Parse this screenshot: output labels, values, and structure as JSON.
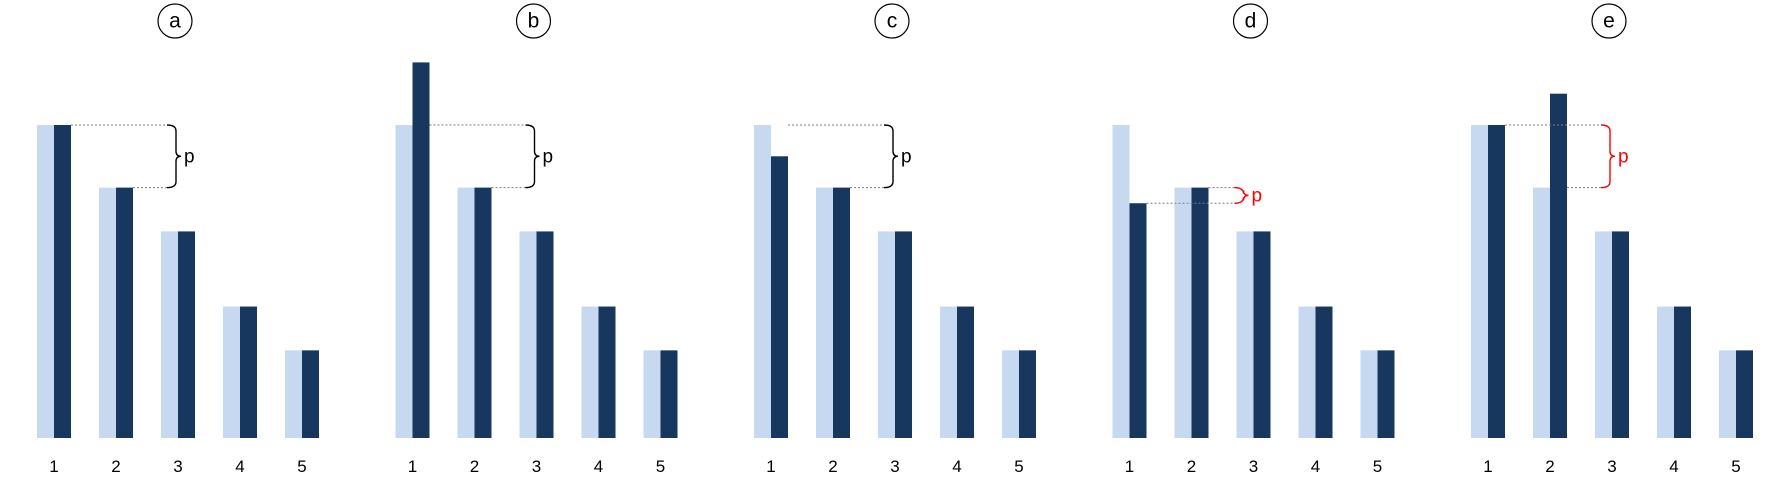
{
  "colors": {
    "light_bar": "#c6d9f0",
    "dark_bar": "#17375e",
    "text": "#000000",
    "highlight": "#ff0000",
    "guide_line": "#7f7f7f"
  },
  "chart_data": [
    {
      "type": "bar",
      "panel_label": "a",
      "categories": [
        "1",
        "2",
        "3",
        "4",
        "5"
      ],
      "series": [
        {
          "values": [
            100,
            80,
            66,
            42,
            28
          ]
        },
        {
          "values": [
            100,
            80,
            66,
            42,
            28
          ]
        }
      ],
      "annotation": {
        "label": "p",
        "from": 100,
        "to": 80,
        "highlight": false
      },
      "ylim": [
        0,
        120
      ]
    },
    {
      "type": "bar",
      "panel_label": "b",
      "categories": [
        "1",
        "2",
        "3",
        "4",
        "5"
      ],
      "series": [
        {
          "values": [
            100,
            80,
            66,
            42,
            28
          ]
        },
        {
          "values": [
            120,
            80,
            66,
            42,
            28
          ]
        }
      ],
      "annotation": {
        "label": "p",
        "from": 100,
        "to": 80,
        "highlight": false
      },
      "ylim": [
        0,
        120
      ]
    },
    {
      "type": "bar",
      "panel_label": "c",
      "categories": [
        "1",
        "2",
        "3",
        "4",
        "5"
      ],
      "series": [
        {
          "values": [
            100,
            80,
            66,
            42,
            28
          ]
        },
        {
          "values": [
            90,
            80,
            66,
            42,
            28
          ]
        }
      ],
      "annotation": {
        "label": "p",
        "from": 100,
        "to": 80,
        "highlight": false
      },
      "ylim": [
        0,
        120
      ]
    },
    {
      "type": "bar",
      "panel_label": "d",
      "categories": [
        "1",
        "2",
        "3",
        "4",
        "5"
      ],
      "series": [
        {
          "values": [
            100,
            80,
            66,
            42,
            28
          ]
        },
        {
          "values": [
            75,
            80,
            66,
            42,
            28
          ]
        }
      ],
      "annotation": {
        "label": "p",
        "from": 80,
        "to": 75,
        "highlight": true
      },
      "ylim": [
        0,
        120
      ]
    },
    {
      "type": "bar",
      "panel_label": "e",
      "categories": [
        "1",
        "2",
        "3",
        "4",
        "5"
      ],
      "series": [
        {
          "values": [
            100,
            80,
            66,
            42,
            28
          ]
        },
        {
          "values": [
            100,
            110,
            66,
            42,
            28
          ]
        }
      ],
      "annotation": {
        "label": "p",
        "from": 100,
        "to": 80,
        "highlight": true
      },
      "ylim": [
        0,
        120
      ]
    }
  ]
}
